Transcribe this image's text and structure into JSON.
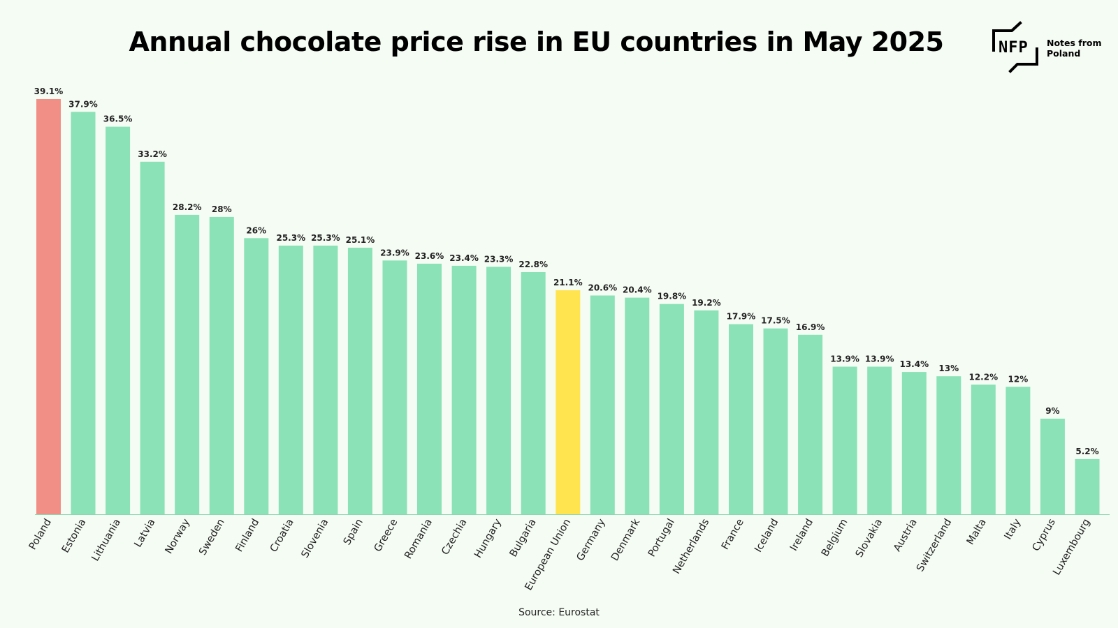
{
  "title": "Annual chocolate price rise in EU countries in May 2025",
  "logo": {
    "mark_text": "NFP",
    "brand_name": "Notes from Poland"
  },
  "source": "Source: Eurostat",
  "colors": {
    "default_bar": "#8ae2b6",
    "highlight_poland": "#f18f87",
    "highlight_eu": "#ffe44f",
    "background": "#f5fcf4"
  },
  "chart_data": {
    "type": "bar",
    "categories": [
      "Poland",
      "Estonia",
      "Lithuania",
      "Latvia",
      "Norway",
      "Sweden",
      "Finland",
      "Croatia",
      "Slovenia",
      "Spain",
      "Greece",
      "Romania",
      "Czechia",
      "Hungary",
      "Bulgaria",
      "European Union",
      "Germany",
      "Denmark",
      "Portugal",
      "Netherlands",
      "France",
      "Iceland",
      "Ireland",
      "Belgium",
      "Slovakia",
      "Austria",
      "Switzerland",
      "Malta",
      "Italy",
      "Cyprus",
      "Luxembourg"
    ],
    "values": [
      39.1,
      37.9,
      36.5,
      33.2,
      28.2,
      28,
      26,
      25.3,
      25.3,
      25.1,
      23.9,
      23.6,
      23.4,
      23.3,
      22.8,
      21.1,
      20.6,
      20.4,
      19.8,
      19.2,
      17.9,
      17.5,
      16.9,
      13.9,
      13.9,
      13.4,
      13,
      12.2,
      12,
      9,
      5.2
    ],
    "value_labels": [
      "39.1%",
      "37.9%",
      "36.5%",
      "33.2%",
      "28.2%",
      "28%",
      "26%",
      "25.3%",
      "25.3%",
      "25.1%",
      "23.9%",
      "23.6%",
      "23.4%",
      "23.3%",
      "22.8%",
      "21.1%",
      "20.6%",
      "20.4%",
      "19.8%",
      "19.2%",
      "17.9%",
      "17.5%",
      "16.9%",
      "13.9%",
      "13.9%",
      "13.4%",
      "13%",
      "12.2%",
      "12%",
      "9%",
      "5.2%"
    ],
    "highlights": {
      "Poland": "#f18f87",
      "European Union": "#ffe44f"
    },
    "title": "Annual chocolate price rise in EU countries in May 2025",
    "xlabel": "",
    "ylabel": "",
    "ylim": [
      0,
      39.1
    ],
    "grid": false,
    "legend": "none"
  }
}
